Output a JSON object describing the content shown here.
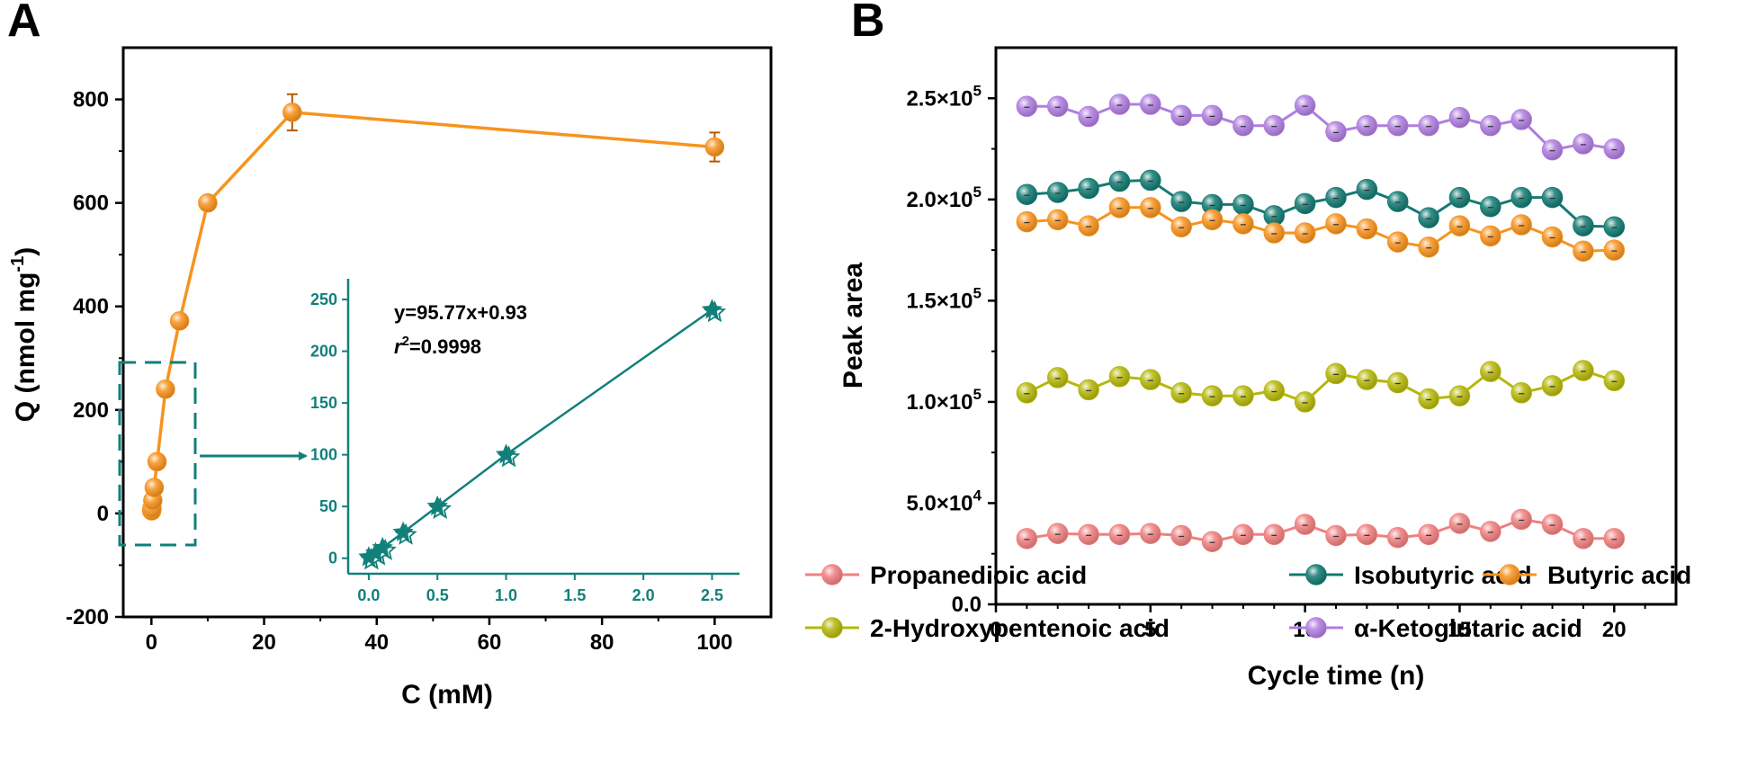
{
  "panels": {
    "a": {
      "letter": "A"
    },
    "b": {
      "letter": "B"
    }
  },
  "chart_data": [
    {
      "id": "A",
      "type": "line",
      "xlabel": "C (mM)",
      "ylabel_main": "Q (nmol mg",
      "ylabel_sup": "-1",
      "ylabel_close": ")",
      "xlim": [
        -5,
        110
      ],
      "ylim": [
        -200,
        900
      ],
      "xticks": [
        0,
        20,
        40,
        60,
        80,
        100
      ],
      "yticks": [
        -200,
        0,
        200,
        400,
        600,
        800
      ],
      "color": "#f7931e",
      "x": [
        0.05,
        0.1,
        0.25,
        0.5,
        1,
        2.5,
        5,
        10,
        25,
        100
      ],
      "y": [
        5,
        10,
        25,
        50,
        100,
        240,
        372,
        600,
        775,
        708
      ],
      "err": [
        5,
        5,
        6,
        8,
        12,
        10,
        8,
        8,
        35,
        28
      ]
    },
    {
      "id": "A-inset",
      "type": "line",
      "xlim": [
        -0.15,
        2.7
      ],
      "ylim": [
        -15,
        270
      ],
      "xticks": [
        "0.0",
        "0.5",
        "1.0",
        "1.5",
        "2.0",
        "2.5"
      ],
      "yticks": [
        0,
        50,
        100,
        150,
        200,
        250
      ],
      "color": "#12807a",
      "x": [
        0,
        0.05,
        0.1,
        0.25,
        0.5,
        1.0,
        2.5
      ],
      "y": [
        1,
        5,
        10,
        25,
        50,
        100,
        240
      ],
      "equation": "y=95.77x+0.93",
      "r2_prefix": "r",
      "r2_sup": "2",
      "r2_value": "=0.9998"
    },
    {
      "id": "B",
      "type": "line",
      "xlabel": "Cycle time (n)",
      "ylabel": "Peak area",
      "xlim": [
        0,
        22
      ],
      "ylim": [
        0,
        275000
      ],
      "xticks": [
        0,
        5,
        10,
        15,
        20
      ],
      "yticks": [
        {
          "value": 0,
          "label": "0.0"
        },
        {
          "value": 50000,
          "mant": "5.0×10",
          "exp": "4"
        },
        {
          "value": 100000,
          "mant": "1.0×10",
          "exp": "5"
        },
        {
          "value": 150000,
          "mant": "1.5×10",
          "exp": "5"
        },
        {
          "value": 200000,
          "mant": "2.0×10",
          "exp": "5"
        },
        {
          "value": 250000,
          "mant": "2.5×10",
          "exp": "5"
        }
      ],
      "x": [
        1,
        2,
        3,
        4,
        5,
        6,
        7,
        8,
        9,
        10,
        11,
        12,
        13,
        14,
        15,
        16,
        17,
        18,
        19,
        20
      ],
      "series": [
        {
          "name": "Propanedioic acid",
          "color": "#f08080",
          "values": [
            32500,
            35000,
            34500,
            34500,
            35000,
            34000,
            31000,
            34500,
            34500,
            39500,
            34000,
            34500,
            33000,
            34500,
            40000,
            36000,
            42000,
            39500,
            32500,
            32500
          ]
        },
        {
          "name": "Isobutyric acid",
          "color": "#137a72",
          "values": [
            202500,
            203500,
            205500,
            209000,
            209500,
            199000,
            197500,
            197500,
            192000,
            198000,
            201000,
            205000,
            199000,
            191000,
            201000,
            196500,
            201000,
            201000,
            187000,
            186500
          ]
        },
        {
          "name": "Butyric acid",
          "color": "#f7931e",
          "values": [
            189000,
            190000,
            187000,
            196000,
            196000,
            186500,
            190000,
            188000,
            183500,
            183500,
            188000,
            185500,
            179000,
            176500,
            187000,
            182000,
            187500,
            181500,
            174500,
            175000
          ]
        },
        {
          "name": "2-Hydroxypentenoic acid",
          "color": "#b5b80a",
          "values": [
            104500,
            112000,
            106000,
            112500,
            111000,
            104500,
            103000,
            103000,
            105500,
            100000,
            114000,
            111000,
            109500,
            101500,
            103000,
            115000,
            104500,
            108000,
            115500,
            110500
          ]
        },
        {
          "name": "α-Ketoglutaric acid",
          "color": "#b07ee0",
          "values": [
            246000,
            246000,
            241000,
            247000,
            247000,
            241500,
            241500,
            236500,
            236500,
            246500,
            233500,
            236500,
            236500,
            236500,
            240500,
            236500,
            239500,
            224500,
            227500,
            225000
          ]
        }
      ]
    }
  ]
}
